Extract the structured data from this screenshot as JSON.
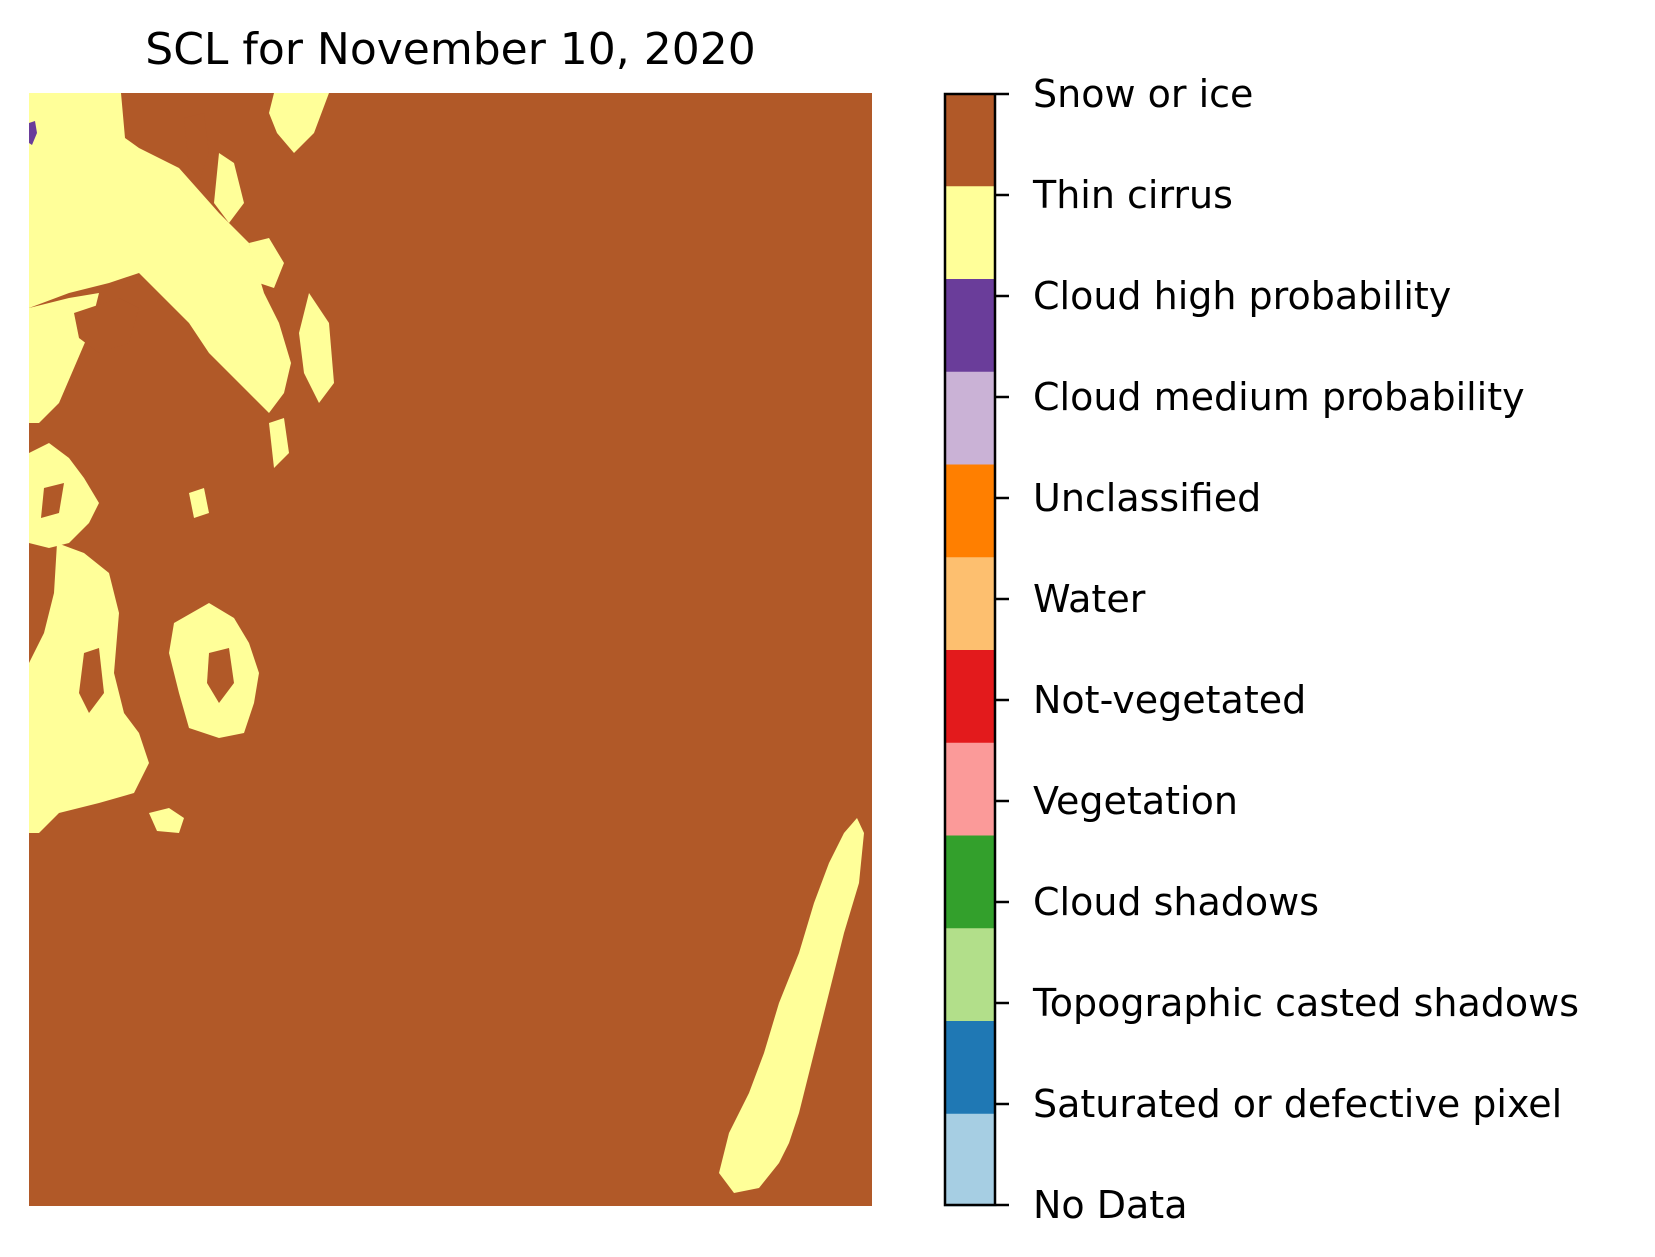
{
  "title": "SCL for November 10, 2020",
  "colorbar": {
    "classes": [
      {
        "label": "No Data",
        "color": "#a6cee3"
      },
      {
        "label": "Saturated or defective pixel",
        "color": "#1f78b4"
      },
      {
        "label": "Topographic casted shadows",
        "color": "#b2df8a"
      },
      {
        "label": "Cloud shadows",
        "color": "#33a02c"
      },
      {
        "label": "Vegetation",
        "color": "#fb9a99"
      },
      {
        "label": "Not-vegetated",
        "color": "#e31a1c"
      },
      {
        "label": "Water",
        "color": "#fdbf6f"
      },
      {
        "label": "Unclassified",
        "color": "#ff7f00"
      },
      {
        "label": "Cloud medium probability",
        "color": "#cab2d6"
      },
      {
        "label": "Cloud high probability",
        "color": "#6a3d9a"
      },
      {
        "label": "Thin cirrus",
        "color": "#ffff99"
      },
      {
        "label": "Snow or ice",
        "color": "#b15928"
      }
    ]
  },
  "map": {
    "dominant_class": "Snow or ice",
    "secondary_class": "Thin cirrus",
    "minor_class": "Cloud high probability"
  }
}
